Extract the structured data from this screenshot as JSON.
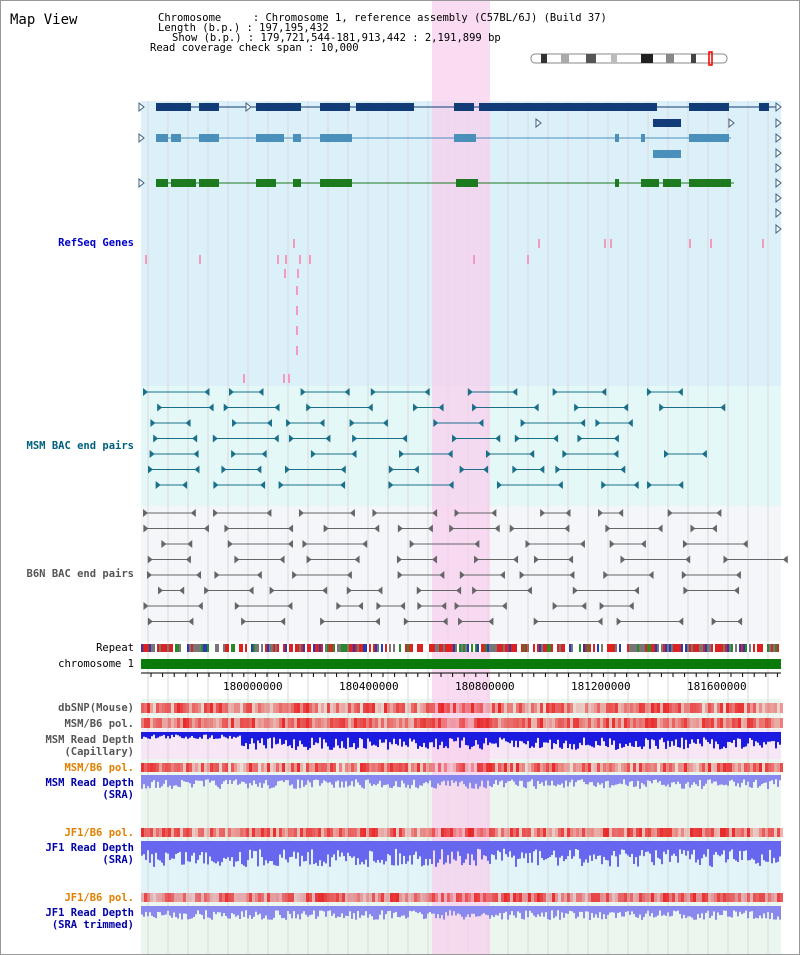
{
  "header": {
    "title": "Map View",
    "info_lines": [
      "Chromosome     : Chromosome 1, reference assembly (C57BL/6J) (Build 37)",
      "Length (b.p.) : 197,195,432",
      "Show (b.p.) : 179,721,544-181,913,442 : 2,191,899 bp",
      "Read coverage check span : 10,000"
    ]
  },
  "tracks": {
    "refseq": "RefSeq Genes",
    "msm_bac": "MSM BAC end pairs",
    "b6n_bac": "B6N BAC end pairs",
    "repeat": "Repeat",
    "chromosome": "chromosome 1",
    "dbsnp": "dbSNP(Mouse)",
    "msm_b6_pol": "MSM/B6 pol.",
    "msm_depth_cap_1": "MSM Read Depth",
    "msm_depth_cap_2": "(Capillary)",
    "msm_b6_pol_2": "MSM/B6 pol.",
    "msm_depth_sra_1": "MSM Read Depth",
    "msm_depth_sra_2": "(SRA)",
    "jf1_b6_pol": "JF1/B6 pol.",
    "jf1_depth_sra_1": "JF1 Read Depth",
    "jf1_depth_sra_2": "(SRA)",
    "jf1_b6_pol_2": "JF1/B6 pol.",
    "jf1_depth_trim_1": "JF1 Read Depth",
    "jf1_depth_trim_2": "(SRA trimmed)"
  },
  "axis": {
    "ticks": [
      "180000000",
      "180400000",
      "180800000",
      "181200000",
      "181600000"
    ]
  },
  "colors": {
    "refseq_label": "#0000cc",
    "msm_label": "#006080",
    "b6n_label": "#555555",
    "orange_label": "#e08000",
    "blue_label": "#0000aa",
    "highlight": "#f8d0ee"
  }
}
